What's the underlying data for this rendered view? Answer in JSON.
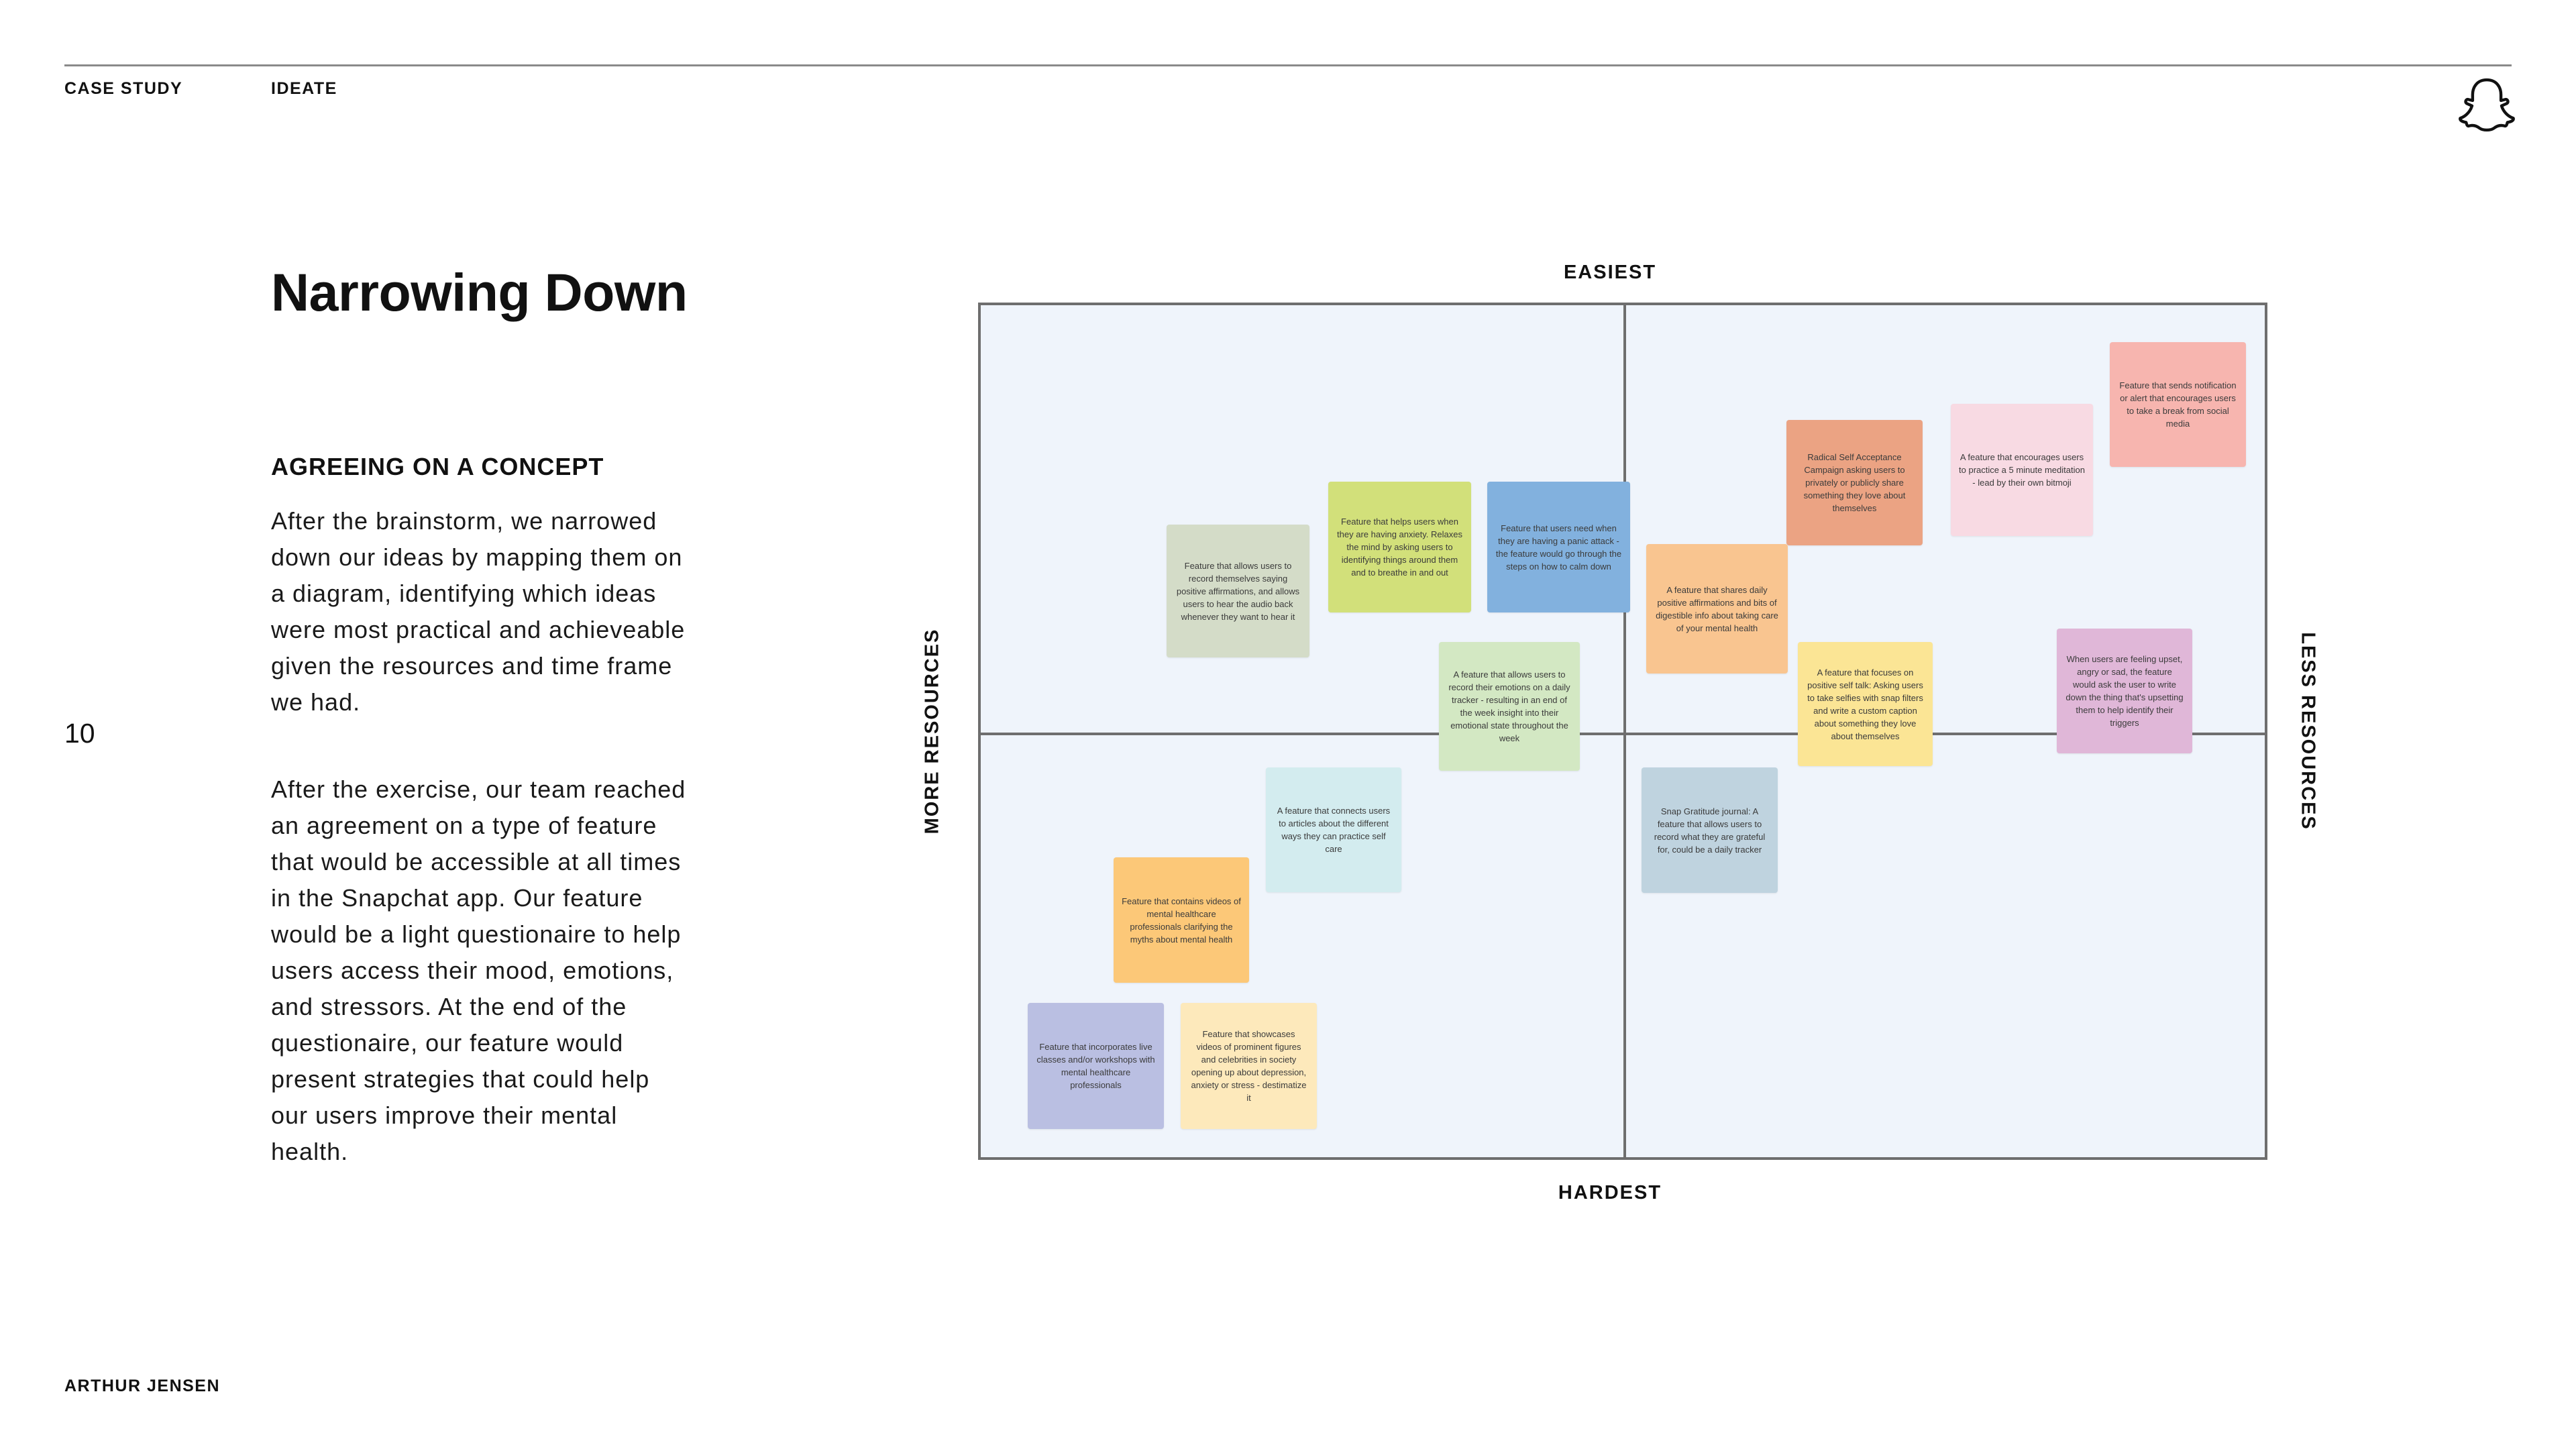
{
  "header": {
    "section": "CASE STUDY",
    "subsection": "IDEATE"
  },
  "brand": {
    "icon": "snapchat-ghost-icon"
  },
  "page": {
    "title": "Narrowing Down",
    "subheading": "AGREEING ON A CONCEPT",
    "paragraphs": [
      "After the brainstorm, we narrowed down our ideas by mapping them on a diagram, identifying which ideas were most practical and achieveable given the resources and time frame we had.",
      "After the exercise, our team reached an agreement on a type of feature that would be accessible at all times in the Snapchat app. Our feature would be a light questionaire to help users access their mood, emotions, and stressors. At the end of the questionaire, our feature would present strategies that could help our users improve their mental health."
    ],
    "number": "10",
    "author": "ARTHUR JENSEN"
  },
  "matrix": {
    "labels": {
      "top": "EASIEST",
      "bottom": "HARDEST",
      "left": "MORE RESOURCES",
      "right": "LESS RESOURCES"
    },
    "notes": [
      {
        "text": "Feature that allows users to record themselves saying positive affirmations, and allows users to hear the audio back whenever they want to hear it",
        "color": "#d4dcc8"
      },
      {
        "text": "Feature that helps users when they are having anxiety. Relaxes the mind by asking users to identifying things around them and to breathe in and out",
        "color": "#d2e07a"
      },
      {
        "text": "Feature that users need when they are having a panic attack - the feature would go through the steps on how to calm down",
        "color": "#82b1de"
      },
      {
        "text": "A feature that allows users to record their emotions on a daily tracker - resulting in an end of the week insight into their emotional state throughout the week",
        "color": "#d3e8c3"
      },
      {
        "text": "Radical Self Acceptance Campaign asking users to privately or publicly share something they love about themselves",
        "color": "#eba383"
      },
      {
        "text": "A feature that encourages users to practice a 5 minute meditation - lead by their own bitmoji",
        "color": "#f8dae3"
      },
      {
        "text": "Feature that sends notification or alert that encourages users to take a break from social media",
        "color": "#f7b5af"
      },
      {
        "text": "A feature that shares daily positive affirmations and bits of digestible info about taking care of your mental health",
        "color": "#f9c590"
      },
      {
        "text": "A feature that focuses on positive self talk: Asking users to take selfies with snap filters and write a custom caption about something they love about themselves",
        "color": "#fbe595"
      },
      {
        "text": "When users are feeling upset, angry or sad, the feature would ask the user to write down the thing that's upsetting them to help identify their triggers",
        "color": "#e0b7d8"
      },
      {
        "text": "A feature that connects users to articles about the different ways they can practice self care",
        "color": "#d3ecef"
      },
      {
        "text": "Snap Gratitude journal: A feature that allows users to record what they are grateful for, could be a daily tracker",
        "color": "#bfd3df"
      },
      {
        "text": "Feature that contains videos of mental healthcare professionals clarifying the myths about mental health",
        "color": "#fcc878"
      },
      {
        "text": "Feature that incorporates live classes and/or workshops with mental healthcare professionals",
        "color": "#babfe2"
      },
      {
        "text": "Feature that showcases videos of prominent figures and celebrities in society opening up about depression, anxiety or stress - destimatize it",
        "color": "#fde9bb"
      }
    ]
  }
}
